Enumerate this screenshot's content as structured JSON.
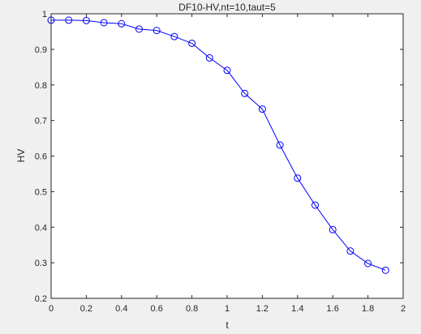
{
  "chart_data": {
    "type": "line",
    "title": "DF10-HV,nt=10,taut=5",
    "xlabel": "t",
    "ylabel": "HV",
    "xlim": [
      0,
      2
    ],
    "ylim": [
      0.2,
      1
    ],
    "xticks": [
      "0",
      "0.2",
      "0.4",
      "0.6",
      "0.8",
      "1",
      "1.2",
      "1.4",
      "1.6",
      "1.8",
      "2"
    ],
    "yticks": [
      "0.2",
      "0.3",
      "0.4",
      "0.5",
      "0.6",
      "0.7",
      "0.8",
      "0.9",
      "1"
    ],
    "grid": false,
    "series": [
      {
        "color": "#0000ff",
        "marker": "circle",
        "x": [
          0,
          0.1,
          0.2,
          0.3,
          0.4,
          0.5,
          0.6,
          0.7,
          0.8,
          0.9,
          1.0,
          1.1,
          1.2,
          1.3,
          1.4,
          1.5,
          1.6,
          1.7,
          1.8,
          1.9
        ],
        "y": [
          0.982,
          0.982,
          0.981,
          0.975,
          0.972,
          0.957,
          0.953,
          0.936,
          0.917,
          0.876,
          0.841,
          0.776,
          0.732,
          0.631,
          0.538,
          0.462,
          0.393,
          0.333,
          0.298,
          0.279
        ]
      }
    ]
  }
}
